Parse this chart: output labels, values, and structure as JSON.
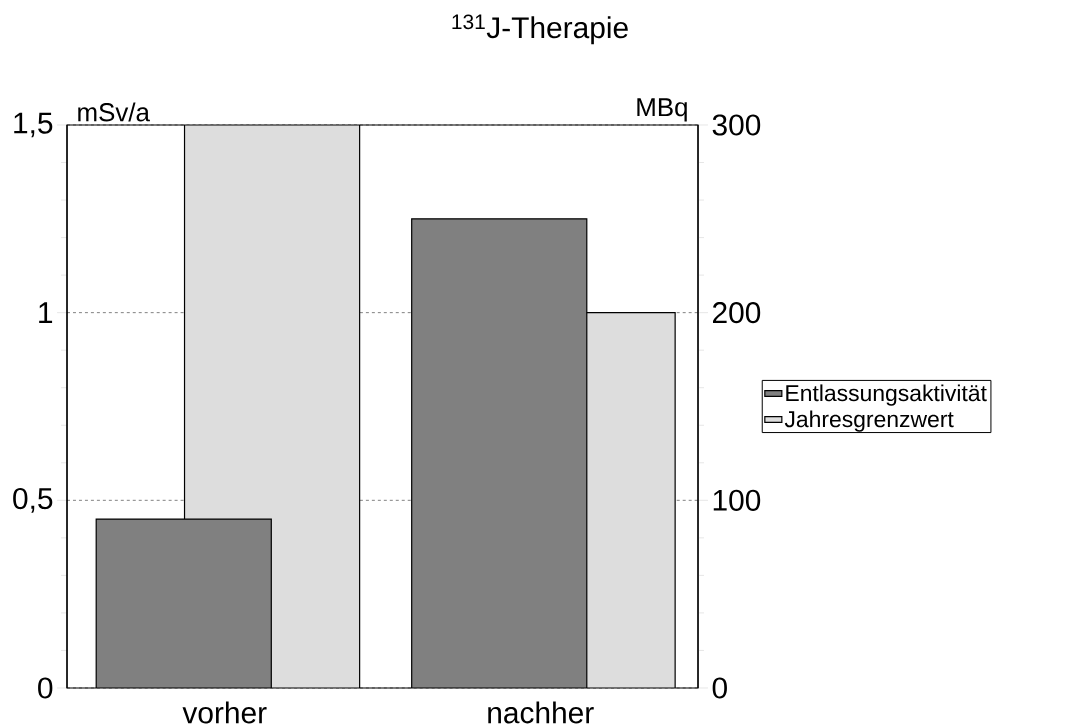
{
  "chart_data": {
    "type": "bar",
    "title": "$^{131}$J-Therapie",
    "ylabel": "mSv/a",
    "y2label": "MBq",
    "categories": [
      "vorher",
      "nachher"
    ],
    "series": [
      {
        "name": "Entlassungsaktivität",
        "color": "#808080",
        "values": [
          90,
          250
        ],
        "axis": "y2"
      },
      {
        "name": "Jahresgrenzwert",
        "color": "#dddddd",
        "values": [
          1.5,
          1.0
        ]
      }
    ],
    "ylim": [
      0,
      1.5
    ],
    "yticks": [
      0,
      {
        "value": 0.5,
        "label": "0,5"
      },
      1,
      {
        "value": 1.5,
        "label": "1,5"
      }
    ],
    "y2lim": [
      0,
      300
    ],
    "y2ticks": [
      0,
      100,
      200,
      300
    ],
    "grid": "y",
    "legend": "right"
  }
}
